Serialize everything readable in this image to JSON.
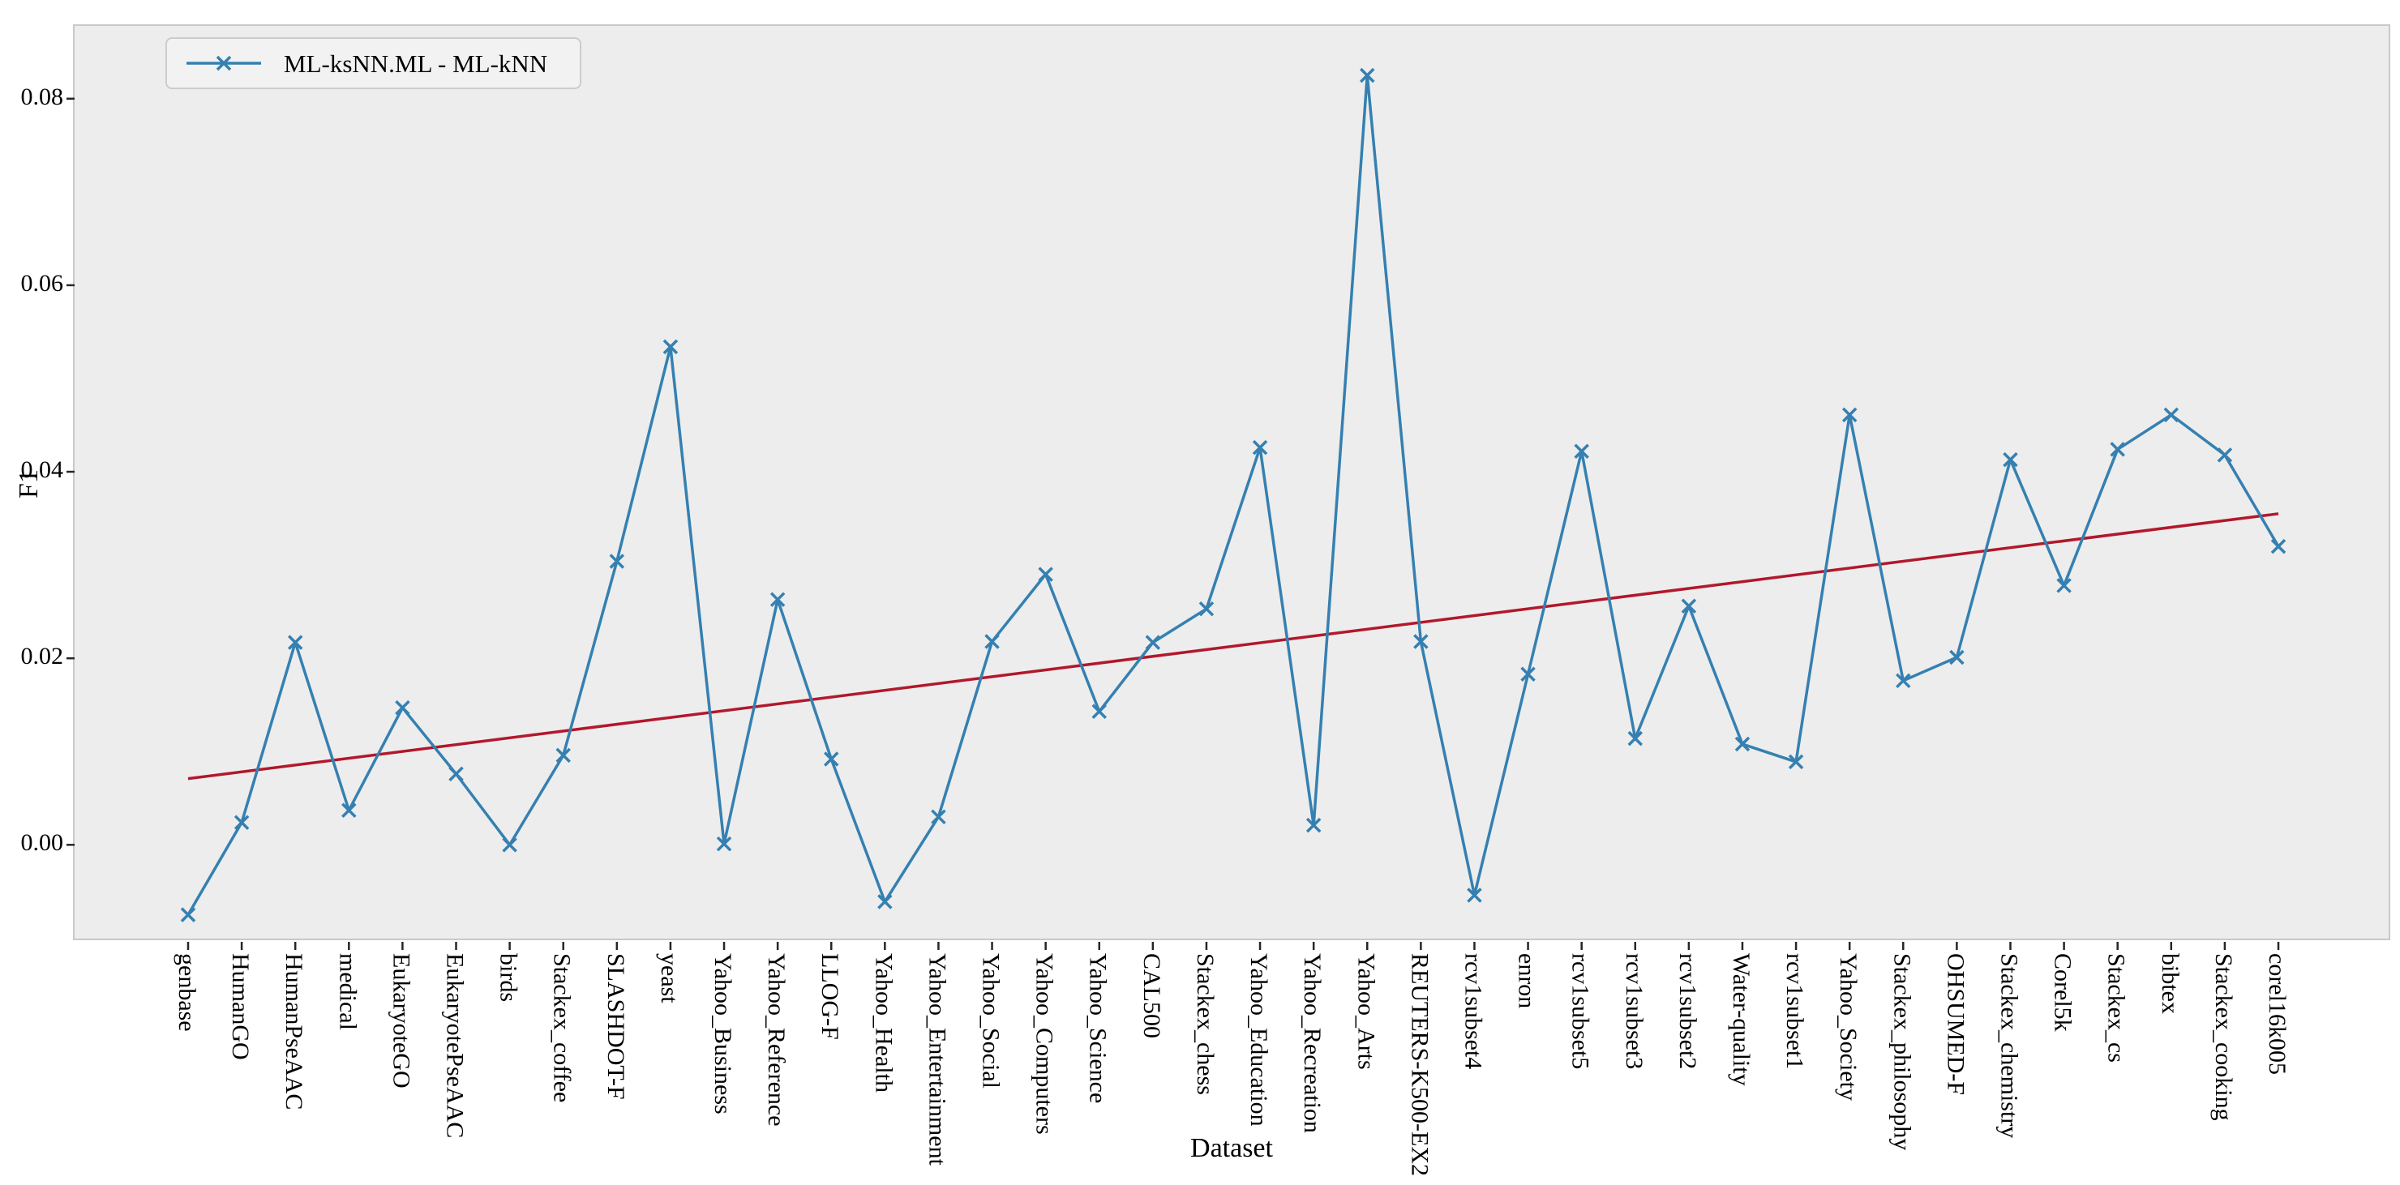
{
  "figure": {
    "background": "#ffffff",
    "plot_background": "#ededed",
    "spine_color": "#c9c9c9",
    "tick_color": "#262626"
  },
  "axes": {
    "xlabel": "Dataset",
    "ylabel": "F1",
    "ytick_labels": [
      "0.00",
      "0.02",
      "0.04",
      "0.06",
      "0.08"
    ]
  },
  "legend": {
    "label": "ML-ksNN.ML - ML-kNN"
  },
  "chart_data": {
    "type": "line",
    "title": "",
    "xlabel": "Dataset",
    "ylabel": "F1",
    "ylim": [
      -0.0104,
      0.0878
    ],
    "yticks": [
      0.0,
      0.02,
      0.04,
      0.06,
      0.08
    ],
    "grid": false,
    "legend_position": "upper-left",
    "categories": [
      "genbase",
      "HumanGO",
      "HumanPseAAC",
      "medical",
      "EukaryoteGO",
      "EukaryotePseAAC",
      "birds",
      "Stackex_coffee",
      "SLASHDOT-F",
      "yeast",
      "Yahoo_Business",
      "Yahoo_Reference",
      "LLOG-F",
      "Yahoo_Health",
      "Yahoo_Entertainment",
      "Yahoo_Social",
      "Yahoo_Computers",
      "Yahoo_Science",
      "CAL500",
      "Stackex_chess",
      "Yahoo_Education",
      "Yahoo_Recreation",
      "Yahoo_Arts",
      "REUTERS-K500-EX2",
      "rcv1subset4",
      "enron",
      "rcv1subset5",
      "rcv1subset3",
      "rcv1subset2",
      "Water-quality",
      "rcv1subset1",
      "Yahoo_Society",
      "Stackex_philosophy",
      "OHSUMED-F",
      "Stackex_chemistry",
      "Corel5k",
      "Stackex_cs",
      "bibtex",
      "Stackex_cooking",
      "corel16k005"
    ],
    "series": [
      {
        "name": "ML-ksNN.ML - ML-kNN",
        "color": "#3580b1",
        "marker": "x",
        "values": [
          -0.0075,
          0.0024,
          0.0217,
          0.0037,
          0.0147,
          0.0076,
          0.0,
          0.0096,
          0.0304,
          0.0534,
          0.0001,
          0.0263,
          0.0092,
          -0.0061,
          0.003,
          0.0218,
          0.029,
          0.0143,
          0.0217,
          0.0253,
          0.0426,
          0.0021,
          0.0825,
          0.0218,
          -0.0054,
          0.0183,
          0.0422,
          0.0114,
          0.0256,
          0.0108,
          0.0089,
          0.0461,
          0.0176,
          0.0201,
          0.0413,
          0.0278,
          0.0424,
          0.0461,
          0.0418,
          0.032
        ]
      }
    ],
    "trendline": {
      "name": "linear-trend",
      "color": "#b2182b",
      "start_value": 0.0071,
      "end_value": 0.0355
    }
  }
}
